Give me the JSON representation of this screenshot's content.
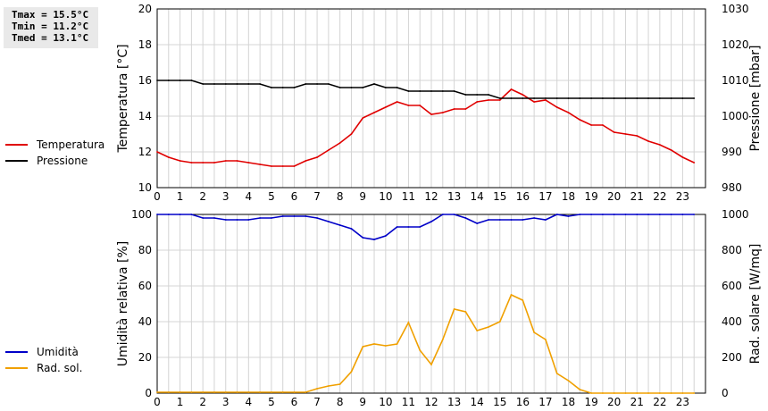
{
  "stats": [
    "Tmax = 15.5°C",
    "Tmin = 11.2°C",
    "Tmed = 13.1°C"
  ],
  "legend_top": [
    {
      "label": "Temperatura",
      "color": "#e00000"
    },
    {
      "label": "Pressione",
      "color": "#000000"
    }
  ],
  "legend_bottom": [
    {
      "label": "Umidità",
      "color": "#0000c8"
    },
    {
      "label": "Rad. sol.",
      "color": "#f0a000"
    }
  ],
  "chart_data": [
    {
      "type": "line",
      "ylabel": "Temperatura [°C]",
      "y2label": "Pressione [mbar]",
      "ylim": [
        10,
        20
      ],
      "y2lim": [
        980,
        1030
      ],
      "yticks": [
        10,
        12,
        14,
        16,
        18,
        20
      ],
      "y2ticks": [
        980,
        990,
        1000,
        1010,
        1020,
        1030
      ],
      "xlim": [
        0,
        24
      ],
      "xticks": [
        0,
        1,
        2,
        3,
        4,
        5,
        6,
        7,
        8,
        9,
        10,
        11,
        12,
        13,
        14,
        15,
        16,
        17,
        18,
        19,
        20,
        21,
        22,
        23
      ],
      "grid": true,
      "series": [
        {
          "name": "Temperatura",
          "axis": "left",
          "color": "#e00000",
          "x": [
            0,
            0.5,
            1,
            1.5,
            2,
            2.5,
            3,
            3.5,
            4,
            4.5,
            5,
            5.5,
            6,
            6.5,
            7,
            7.5,
            8,
            8.5,
            9,
            9.5,
            10,
            10.5,
            11,
            11.5,
            12,
            12.5,
            13,
            13.5,
            14,
            14.5,
            15,
            15.5,
            16,
            16.5,
            17,
            17.5,
            18,
            18.5,
            19,
            19.5,
            20,
            20.5,
            21,
            21.5,
            22,
            22.5,
            23,
            23.5
          ],
          "y": [
            12.0,
            11.7,
            11.5,
            11.4,
            11.4,
            11.4,
            11.5,
            11.5,
            11.4,
            11.3,
            11.2,
            11.2,
            11.2,
            11.5,
            11.7,
            12.1,
            12.5,
            13.0,
            13.9,
            14.2,
            14.5,
            14.8,
            14.6,
            14.6,
            14.1,
            14.2,
            14.4,
            14.4,
            14.8,
            14.9,
            14.9,
            15.5,
            15.2,
            14.8,
            14.9,
            14.5,
            14.2,
            13.8,
            13.5,
            13.5,
            13.1,
            13.0,
            12.9,
            12.6,
            12.4,
            12.1,
            11.7,
            11.4
          ]
        },
        {
          "name": "Pressione",
          "axis": "right",
          "color": "#000000",
          "x": [
            0,
            0.5,
            1,
            1.5,
            2,
            2.5,
            3,
            3.5,
            4,
            4.5,
            5,
            5.5,
            6,
            6.5,
            7,
            7.5,
            8,
            8.5,
            9,
            9.5,
            10,
            10.5,
            11,
            11.5,
            12,
            12.5,
            13,
            13.5,
            14,
            14.5,
            15,
            15.5,
            16,
            16.5,
            17,
            17.5,
            18,
            18.5,
            19,
            19.5,
            20,
            20.5,
            21,
            21.5,
            22,
            22.5,
            23,
            23.5
          ],
          "y": [
            1010,
            1010,
            1010,
            1010,
            1009,
            1009,
            1009,
            1009,
            1009,
            1009,
            1008,
            1008,
            1008,
            1009,
            1009,
            1009,
            1008,
            1008,
            1008,
            1009,
            1008,
            1008,
            1007,
            1007,
            1007,
            1007,
            1007,
            1006,
            1006,
            1006,
            1005,
            1005,
            1005,
            1005,
            1005,
            1005,
            1005,
            1005,
            1005,
            1005,
            1005,
            1005,
            1005,
            1005,
            1005,
            1005,
            1005,
            1005
          ]
        }
      ]
    },
    {
      "type": "line",
      "ylabel": "Umidità relativa [%]",
      "y2label": "Rad. solare [W/mq]",
      "ylim": [
        0,
        100
      ],
      "y2lim": [
        0,
        1000
      ],
      "yticks": [
        0,
        20,
        40,
        60,
        80,
        100
      ],
      "y2ticks": [
        0,
        200,
        400,
        600,
        800,
        1000
      ],
      "xlim": [
        0,
        24
      ],
      "xticks": [
        0,
        1,
        2,
        3,
        4,
        5,
        6,
        7,
        8,
        9,
        10,
        11,
        12,
        13,
        14,
        15,
        16,
        17,
        18,
        19,
        20,
        21,
        22,
        23
      ],
      "grid": true,
      "series": [
        {
          "name": "Umidità",
          "axis": "left",
          "color": "#0000c8",
          "x": [
            0,
            0.5,
            1,
            1.5,
            2,
            2.5,
            3,
            3.5,
            4,
            4.5,
            5,
            5.5,
            6,
            6.5,
            7,
            7.5,
            8,
            8.5,
            9,
            9.5,
            10,
            10.5,
            11,
            11.5,
            12,
            12.5,
            13,
            13.5,
            14,
            14.5,
            15,
            15.5,
            16,
            16.5,
            17,
            17.5,
            18,
            18.5,
            19,
            19.5,
            20,
            20.5,
            21,
            21.5,
            22,
            22.5,
            23,
            23.5
          ],
          "y": [
            100,
            100,
            100,
            100,
            98,
            98,
            97,
            97,
            97,
            98,
            98,
            99,
            99,
            99,
            98,
            96,
            94,
            92,
            87,
            86,
            88,
            93,
            93,
            93,
            96,
            100,
            100,
            98,
            95,
            97,
            97,
            97,
            97,
            98,
            97,
            100,
            99,
            100,
            100,
            100,
            100,
            100,
            100,
            100,
            100,
            100,
            100,
            100
          ]
        },
        {
          "name": "Rad. sol.",
          "axis": "right",
          "color": "#f0a000",
          "x": [
            0,
            0.5,
            1,
            1.5,
            2,
            2.5,
            3,
            3.5,
            4,
            4.5,
            5,
            5.5,
            6,
            6.5,
            7,
            7.5,
            8,
            8.5,
            9,
            9.5,
            10,
            10.5,
            11,
            11.5,
            12,
            12.5,
            13,
            13.5,
            14,
            14.5,
            15,
            15.5,
            16,
            16.5,
            17,
            17.5,
            18,
            18.5,
            19,
            19.5,
            20,
            20.5,
            21,
            21.5,
            22,
            22.5,
            23,
            23.5
          ],
          "y": [
            5,
            5,
            5,
            5,
            5,
            5,
            5,
            5,
            5,
            5,
            5,
            5,
            5,
            5,
            25,
            40,
            50,
            120,
            260,
            275,
            265,
            275,
            395,
            240,
            160,
            300,
            470,
            455,
            350,
            370,
            400,
            550,
            520,
            340,
            300,
            110,
            70,
            20,
            0,
            0,
            0,
            0,
            0,
            0,
            0,
            0,
            0,
            0
          ]
        }
      ]
    }
  ]
}
